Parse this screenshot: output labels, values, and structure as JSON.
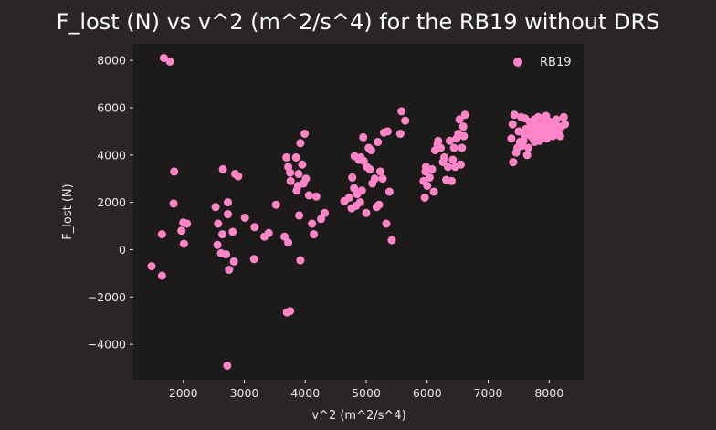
{
  "chart_data": {
    "type": "scatter",
    "title": "F_lost (N) vs v^2 (m^2/s^4) for the RB19 without DRS",
    "xlabel": "v^2 (m^2/s^4)",
    "ylabel": "F_lost (N)",
    "xlim": [
      1180,
      8580
    ],
    "ylim": [
      -5500,
      8700
    ],
    "xticks": [
      2000,
      3000,
      4000,
      5000,
      6000,
      7000,
      8000
    ],
    "yticks": [
      -4000,
      -2000,
      0,
      2000,
      4000,
      6000,
      8000
    ],
    "xtick_labels": [
      "2000",
      "3000",
      "4000",
      "5000",
      "6000",
      "7000",
      "8000"
    ],
    "ytick_labels": [
      "−4000",
      "−2000",
      "0",
      "2000",
      "4000",
      "6000",
      "8000"
    ],
    "grid": false,
    "legend_position": "top-right",
    "colors": {
      "figure_bg": "#2a2626",
      "axes_bg": "#1c1b1a",
      "marker": "#ff85c8",
      "text": "#e8e8e8"
    },
    "series": [
      {
        "name": "RB19",
        "points": [
          [
            1680,
            8100
          ],
          [
            1780,
            7950
          ],
          [
            1850,
            3300
          ],
          [
            1840,
            1950
          ],
          [
            1970,
            800
          ],
          [
            2000,
            1150
          ],
          [
            2060,
            1100
          ],
          [
            2010,
            250
          ],
          [
            1650,
            650
          ],
          [
            1480,
            -700
          ],
          [
            1650,
            -1100
          ],
          [
            2530,
            1800
          ],
          [
            2570,
            1100
          ],
          [
            2560,
            200
          ],
          [
            2640,
            650
          ],
          [
            2620,
            -150
          ],
          [
            2700,
            -200
          ],
          [
            2650,
            3400
          ],
          [
            2850,
            3200
          ],
          [
            2900,
            3100
          ],
          [
            2730,
            2000
          ],
          [
            2730,
            1500
          ],
          [
            2810,
            750
          ],
          [
            2750,
            -850
          ],
          [
            2830,
            -500
          ],
          [
            3010,
            1350
          ],
          [
            3170,
            950
          ],
          [
            3160,
            -400
          ],
          [
            3330,
            550
          ],
          [
            3400,
            700
          ],
          [
            2720,
            -4900
          ],
          [
            3520,
            1900
          ],
          [
            3660,
            550
          ],
          [
            3720,
            300
          ],
          [
            3690,
            3900
          ],
          [
            3720,
            3500
          ],
          [
            3750,
            3250
          ],
          [
            3760,
            2900
          ],
          [
            3850,
            3900
          ],
          [
            3860,
            2500
          ],
          [
            3880,
            2700
          ],
          [
            3890,
            3200
          ],
          [
            3900,
            1450
          ],
          [
            3920,
            4500
          ],
          [
            3950,
            3600
          ],
          [
            3970,
            2800
          ],
          [
            3990,
            4900
          ],
          [
            4010,
            3000
          ],
          [
            4060,
            2300
          ],
          [
            4110,
            1100
          ],
          [
            4140,
            650
          ],
          [
            4180,
            2250
          ],
          [
            4260,
            1300
          ],
          [
            4320,
            1550
          ],
          [
            3700,
            -2650
          ],
          [
            3750,
            -2600
          ],
          [
            3920,
            -450
          ],
          [
            4640,
            2050
          ],
          [
            4720,
            2200
          ],
          [
            4760,
            1750
          ],
          [
            4770,
            3050
          ],
          [
            4800,
            2600
          ],
          [
            4810,
            3950
          ],
          [
            4830,
            1850
          ],
          [
            4850,
            2350
          ],
          [
            4880,
            3800
          ],
          [
            4900,
            2000
          ],
          [
            4910,
            3900
          ],
          [
            4930,
            2500
          ],
          [
            4950,
            4750
          ],
          [
            4960,
            3750
          ],
          [
            5000,
            1550
          ],
          [
            5010,
            3500
          ],
          [
            5040,
            4300
          ],
          [
            5060,
            3400
          ],
          [
            5080,
            4200
          ],
          [
            5100,
            2800
          ],
          [
            5140,
            3000
          ],
          [
            5170,
            1800
          ],
          [
            5190,
            4550
          ],
          [
            5210,
            1900
          ],
          [
            5230,
            3300
          ],
          [
            5270,
            3000
          ],
          [
            5290,
            4950
          ],
          [
            5330,
            1100
          ],
          [
            5350,
            5000
          ],
          [
            5380,
            2450
          ],
          [
            5420,
            400
          ],
          [
            5560,
            4900
          ],
          [
            5580,
            5850
          ],
          [
            5640,
            5450
          ],
          [
            5940,
            2900
          ],
          [
            5960,
            2200
          ],
          [
            5970,
            3300
          ],
          [
            5980,
            3500
          ],
          [
            6000,
            2700
          ],
          [
            6040,
            3050
          ],
          [
            6080,
            3400
          ],
          [
            6110,
            2450
          ],
          [
            6130,
            4200
          ],
          [
            6170,
            4450
          ],
          [
            6180,
            4600
          ],
          [
            6220,
            4300
          ],
          [
            6260,
            3700
          ],
          [
            6280,
            3900
          ],
          [
            6310,
            2950
          ],
          [
            6340,
            3500
          ],
          [
            6370,
            4600
          ],
          [
            6400,
            2900
          ],
          [
            6420,
            3800
          ],
          [
            6440,
            4300
          ],
          [
            6460,
            3500
          ],
          [
            6480,
            4700
          ],
          [
            6510,
            4900
          ],
          [
            6530,
            5500
          ],
          [
            6550,
            3600
          ],
          [
            6570,
            4300
          ],
          [
            6590,
            5200
          ],
          [
            6600,
            4800
          ],
          [
            6620,
            5700
          ],
          [
            7380,
            4700
          ],
          [
            7400,
            5300
          ],
          [
            7410,
            3700
          ],
          [
            7430,
            5700
          ],
          [
            7460,
            4100
          ],
          [
            7480,
            4300
          ],
          [
            7500,
            5000
          ],
          [
            7520,
            4550
          ],
          [
            7540,
            5600
          ],
          [
            7560,
            4400
          ],
          [
            7580,
            4600
          ],
          [
            7600,
            4850
          ],
          [
            7620,
            5100
          ],
          [
            7640,
            4000
          ],
          [
            7660,
            4300
          ],
          [
            7680,
            5400
          ],
          [
            7700,
            4800
          ],
          [
            7720,
            5000
          ],
          [
            7740,
            4700
          ],
          [
            7760,
            5500
          ],
          [
            7780,
            5200
          ],
          [
            7800,
            4900
          ],
          [
            7820,
            5600
          ],
          [
            7840,
            4600
          ],
          [
            7860,
            5100
          ],
          [
            7880,
            5300
          ],
          [
            7900,
            4800
          ],
          [
            7920,
            5000
          ],
          [
            7940,
            5500
          ],
          [
            7960,
            4700
          ],
          [
            7980,
            5200
          ],
          [
            8000,
            4900
          ],
          [
            8020,
            5400
          ],
          [
            8040,
            5000
          ],
          [
            8060,
            4800
          ],
          [
            8080,
            5100
          ],
          [
            8100,
            5300
          ],
          [
            8120,
            5500
          ],
          [
            8150,
            5000
          ],
          [
            8180,
            4800
          ],
          [
            8200,
            5200
          ],
          [
            8240,
            5600
          ],
          [
            8260,
            5300
          ],
          [
            7760,
            4550
          ],
          [
            7860,
            4750
          ],
          [
            7950,
            5650
          ],
          [
            8030,
            5150
          ],
          [
            7700,
            5300
          ],
          [
            7600,
            5550
          ],
          [
            7820,
            5250
          ]
        ]
      }
    ]
  }
}
